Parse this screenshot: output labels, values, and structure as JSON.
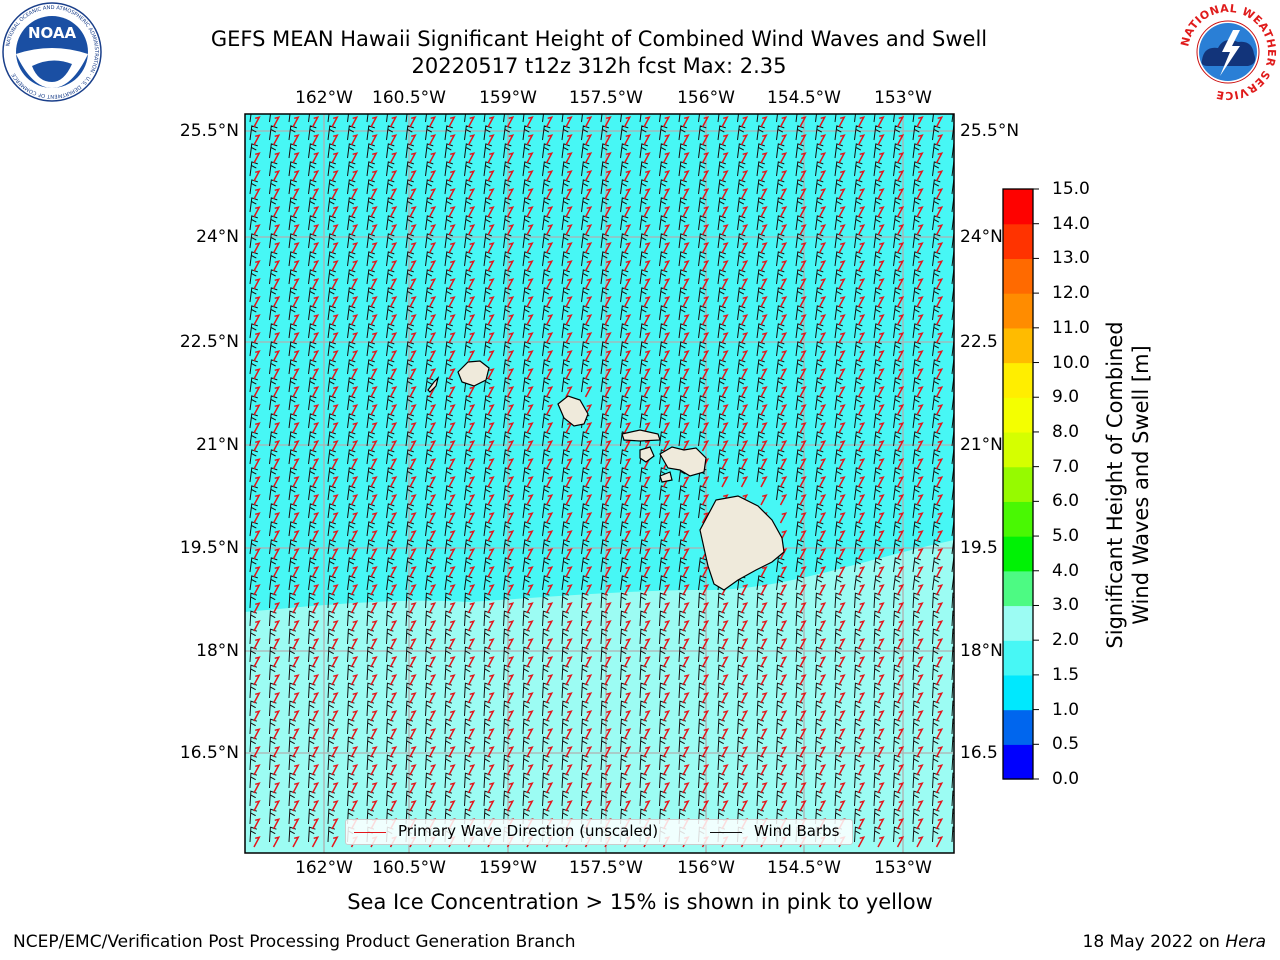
{
  "title_line1": "GEFS MEAN Hawaii Significant Height of Combined Wind Waves and Swell",
  "title_line2": "20220517 t12z 312h fcst   Max: 2.35",
  "logos": {
    "left": {
      "name": "noaa-logo",
      "text": "NOAA",
      "ring_text": "NATIONAL OCEANIC AND ATMOSPHERIC ADMINISTRATION · U.S. DEPARTMENT OF COMMERCE"
    },
    "right": {
      "name": "nws-logo",
      "ring_text": "NATIONAL WEATHER SERVICE"
    }
  },
  "map": {
    "lon_labels": [
      "162°W",
      "160.5°W",
      "159°W",
      "157.5°W",
      "156°W",
      "154.5°W",
      "153°W"
    ],
    "lat_labels_left": [
      "25.5°N",
      "24°N",
      "22.5°N",
      "21°N",
      "19.5°N",
      "18°N",
      "16.5°N"
    ],
    "lat_labels_right": [
      "25.5°N",
      "24°N",
      "22.5",
      "21°N",
      "19.5",
      "18°N",
      "16.5"
    ],
    "ocean_color": "#47f7f5",
    "ocean_light_color": "#9cfcf3",
    "land_color": "#efeadb",
    "wave_arrow_color": "#e4151b",
    "barb_color": "#111111"
  },
  "legend": {
    "wave_label": "Primary Wave Direction (unscaled)",
    "barb_label": "Wind Barbs"
  },
  "colorbar": {
    "title_line1": "Significant Height of Combined",
    "title_line2": "Wind Waves and Swell [m]",
    "ticks": [
      "15.0",
      "14.0",
      "13.0",
      "12.0",
      "11.0",
      "10.0",
      "9.0",
      "8.0",
      "7.0",
      "6.0",
      "5.0",
      "4.0",
      "3.0",
      "2.0",
      "1.5",
      "1.0",
      "0.5",
      "0.0"
    ],
    "colors_bottom_to_top": [
      "#0000fe",
      "#0066ee",
      "#00e8fe",
      "#47f7f5",
      "#9cfcf3",
      "#4dfa83",
      "#00f205",
      "#49f803",
      "#96fa00",
      "#d5ff00",
      "#f4ff00",
      "#ffee00",
      "#ffbb00",
      "#ff8c00",
      "#ff6a00",
      "#ff3300",
      "#fe0200"
    ]
  },
  "footer": {
    "note": "Sea Ice Concentration > 15% is shown in pink to yellow",
    "left": "NCEP/EMC/Verification Post Processing Product Generation Branch",
    "right_prefix": "18 May 2022 on ",
    "right_machine": "Hera"
  }
}
